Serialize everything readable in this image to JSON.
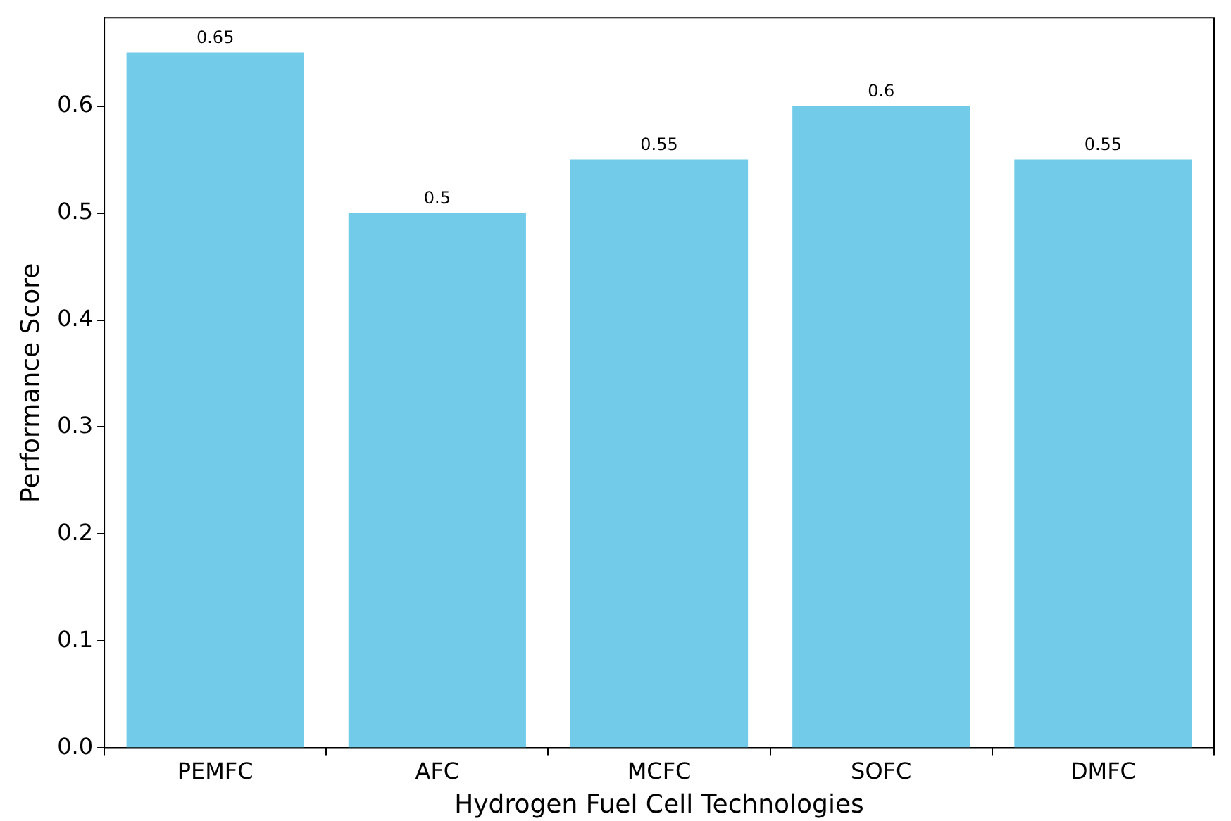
{
  "chart_data": {
    "type": "bar",
    "xlabel": "Hydrogen Fuel Cell Technologies",
    "ylabel": "Performance Score",
    "categories": [
      "PEMFC",
      "AFC",
      "MCFC",
      "SOFC",
      "DMFC"
    ],
    "values": [
      0.65,
      0.5,
      0.55,
      0.6,
      0.55
    ],
    "color": "#72cce9",
    "ylim": [
      0,
      0.6825
    ],
    "yticks": [
      {
        "value": 0,
        "label": "0.0"
      },
      0.1,
      0.2,
      0.3,
      0.4,
      0.5,
      0.6
    ],
    "grid": false,
    "data_labels": true
  }
}
